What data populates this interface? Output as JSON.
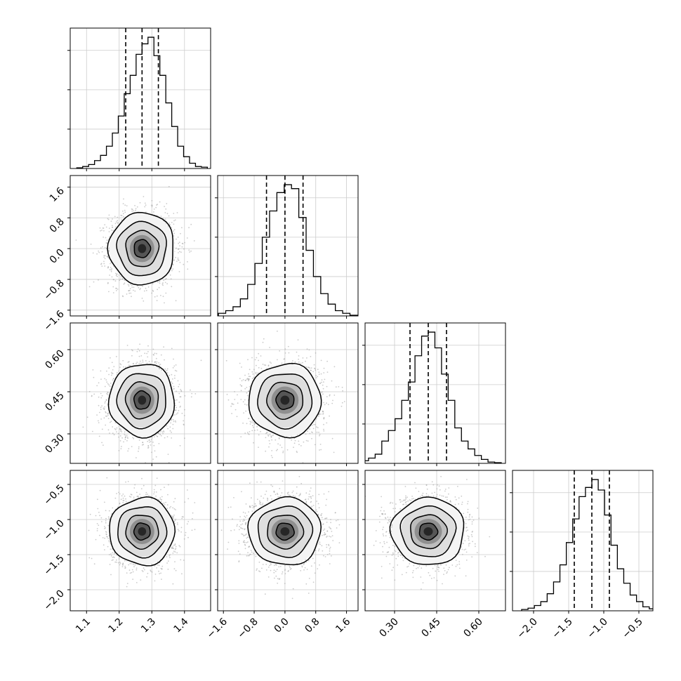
{
  "chart_data": {
    "type": "corner",
    "parameters": [
      {
        "index": 0,
        "range": [
          1.05,
          1.48
        ],
        "ticks": [
          1.1,
          1.2,
          1.3,
          1.4
        ],
        "tick_labels": [
          "1.1",
          "1.2",
          "1.3",
          "1.4"
        ],
        "mean": 1.27,
        "sd": 0.05,
        "quantiles": [
          1.22,
          1.27,
          1.32
        ],
        "hist_counts": [
          0.5,
          1.5,
          3,
          6,
          10,
          17,
          27,
          40,
          57,
          71,
          87,
          95,
          100,
          86,
          71,
          50,
          32,
          17,
          9,
          4,
          1.5,
          1
        ]
      },
      {
        "index": 1,
        "range": [
          -1.75,
          1.9
        ],
        "ticks": [
          -1.6,
          -0.8,
          0.0,
          0.8,
          1.6
        ],
        "tick_labels": [
          "−1.6",
          "−0.8",
          "0.0",
          "0.8",
          "1.6"
        ],
        "mean": 0.0,
        "sd": 0.47,
        "quantiles": [
          -0.48,
          0.0,
          0.47
        ],
        "hist_counts": [
          0.5,
          2,
          4,
          7,
          13,
          24,
          40,
          60,
          80,
          94,
          100,
          97,
          75,
          50,
          30,
          17,
          9,
          4,
          2,
          0.5
        ]
      },
      {
        "index": 2,
        "range": [
          0.195,
          0.695
        ],
        "ticks": [
          0.3,
          0.45,
          0.6
        ],
        "tick_labels": [
          "0.30",
          "0.45",
          "0.60"
        ],
        "mean": 0.42,
        "sd": 0.065,
        "quantiles": [
          0.355,
          0.42,
          0.485
        ],
        "hist_counts": [
          1,
          2,
          4,
          7,
          17,
          25,
          34,
          48,
          62,
          82,
          97,
          100,
          88,
          68,
          48,
          27,
          17,
          11,
          6,
          3,
          1,
          0.5
        ]
      },
      {
        "index": 3,
        "range": [
          -2.3,
          -0.3
        ],
        "ticks": [
          -2.0,
          -1.5,
          -1.0,
          -0.5
        ],
        "tick_labels": [
          "−2.0",
          "−1.5",
          "−1.0",
          "−0.5"
        ],
        "mean": -1.17,
        "sd": 0.24,
        "quantiles": [
          -1.42,
          -1.17,
          -0.92
        ],
        "hist_counts": [
          1,
          2,
          4,
          7,
          13,
          22,
          35,
          52,
          70,
          87,
          94,
          100,
          92,
          73,
          50,
          32,
          21,
          12,
          7,
          3,
          1.5,
          0.5
        ]
      }
    ],
    "y_tick_labels_left_column": [
      {
        "row": 1,
        "ticks": [
          -1.6,
          -0.8,
          0.0,
          0.8,
          1.6
        ],
        "labels": [
          "−1.6",
          "−0.8",
          "0.0",
          "0.8",
          "1.6"
        ]
      },
      {
        "row": 2,
        "ticks": [
          0.3,
          0.45,
          0.6
        ],
        "labels": [
          "0.30",
          "0.45",
          "0.60"
        ]
      },
      {
        "row": 3,
        "ticks": [
          -2.0,
          -1.5,
          -1.0,
          -0.5
        ],
        "labels": [
          "−2.0",
          "−1.5",
          "−1.0",
          "−0.5"
        ]
      }
    ],
    "contour_levels_sigma": [
      0.5,
      1.0,
      1.5,
      2.0
    ],
    "grid": true,
    "line_color": "#000000",
    "grid_color": "#cccccc",
    "scatter_color": "#a0a0a0"
  }
}
